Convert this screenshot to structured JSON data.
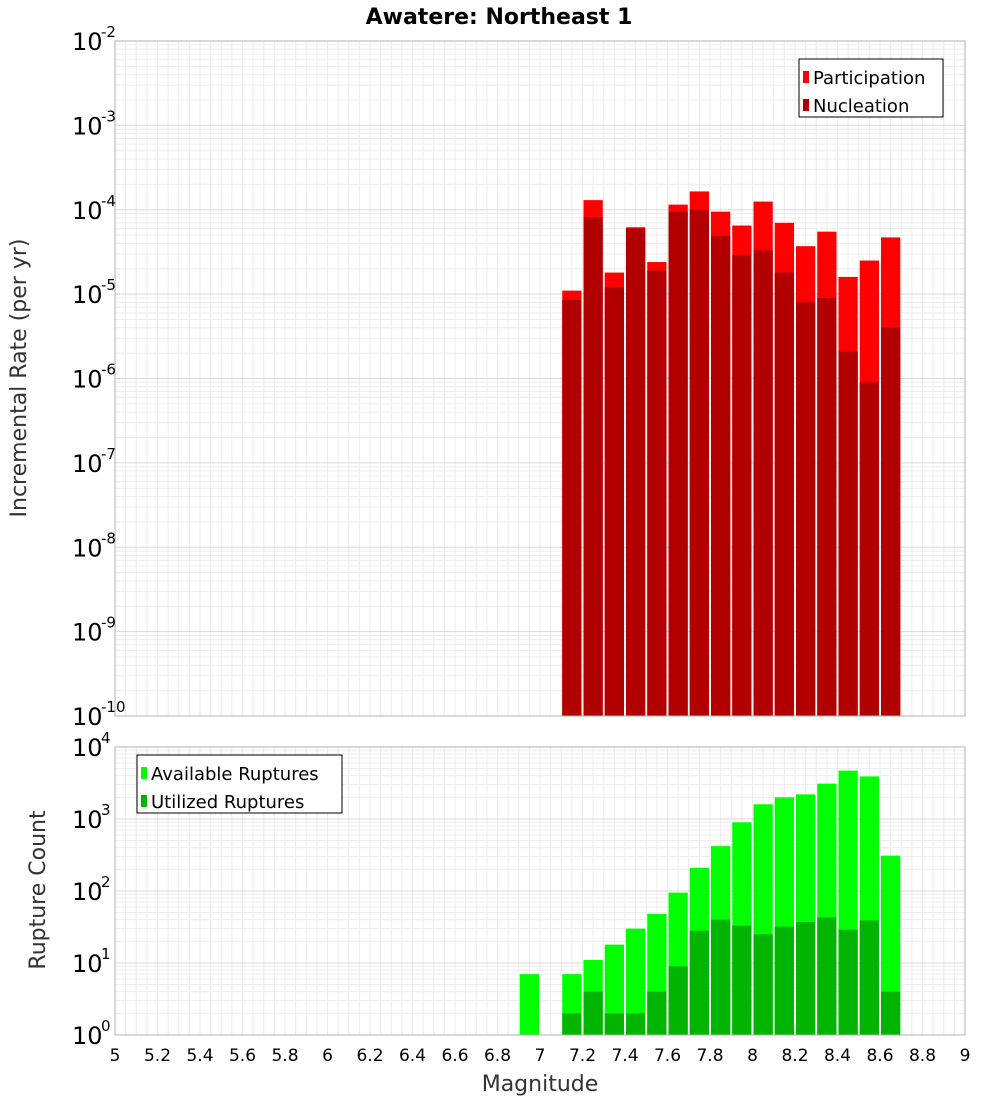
{
  "chart_data": [
    {
      "type": "bar",
      "title": "Awatere: Northeast 1",
      "xlabel": "Magnitude",
      "ylabel": "Incremental Rate (per yr)",
      "yscale": "log",
      "ylim": [
        1e-10,
        0.01
      ],
      "xlim": [
        5,
        9
      ],
      "grid": true,
      "legend_position": "top-right",
      "bin_width": 0.1,
      "x": [
        7.15,
        7.25,
        7.35,
        7.45,
        7.55,
        7.65,
        7.75,
        7.85,
        7.95,
        8.05,
        8.15,
        8.25,
        8.35,
        8.45,
        8.55,
        8.65
      ],
      "series": [
        {
          "name": "Participation",
          "color": "#ff0000",
          "values": [
            1.1e-05,
            0.00013,
            1.8e-05,
            6.2e-05,
            2.4e-05,
            0.000115,
            0.000165,
            9.5e-05,
            6.5e-05,
            0.000125,
            7e-05,
            3.7e-05,
            5.5e-05,
            1.6e-05,
            2.5e-05,
            4.7e-05
          ]
        },
        {
          "name": "Nucleation",
          "color": "#b20000",
          "values": [
            8.5e-06,
            8.2e-05,
            1.2e-05,
            6e-05,
            1.9e-05,
            9.5e-05,
            0.0001,
            4.9e-05,
            2.9e-05,
            3.3e-05,
            1.8e-05,
            8e-06,
            9e-06,
            2.1e-06,
            9e-07,
            4e-06
          ]
        }
      ]
    },
    {
      "type": "bar",
      "xlabel": "Magnitude",
      "ylabel": "Rupture Count",
      "yscale": "log",
      "ylim": [
        1,
        10000.0
      ],
      "xlim": [
        5,
        9
      ],
      "x_ticks": [
        "5",
        "5.2",
        "5.4",
        "5.6",
        "5.8",
        "6",
        "6.2",
        "6.4",
        "6.6",
        "6.8",
        "7",
        "7.2",
        "7.4",
        "7.6",
        "7.8",
        "8",
        "8.2",
        "8.4",
        "8.6",
        "8.8",
        "9"
      ],
      "grid": true,
      "legend_position": "top-left",
      "bin_width": 0.1,
      "x": [
        6.95,
        7.15,
        7.25,
        7.35,
        7.45,
        7.55,
        7.65,
        7.75,
        7.85,
        7.95,
        8.05,
        8.15,
        8.25,
        8.35,
        8.45,
        8.55,
        8.65
      ],
      "series": [
        {
          "name": "Available Ruptures",
          "color": "#00ff00",
          "values": [
            7,
            7,
            11,
            18,
            30,
            48,
            95,
            210,
            420,
            900,
            1600,
            2000,
            2200,
            3100,
            4700,
            3900,
            310
          ]
        },
        {
          "name": "Utilized Ruptures",
          "color": "#00b400",
          "values": [
            1,
            2,
            4,
            2,
            2,
            4,
            9,
            28,
            40,
            33,
            25,
            32,
            37,
            43,
            29,
            39,
            4
          ]
        }
      ]
    }
  ]
}
